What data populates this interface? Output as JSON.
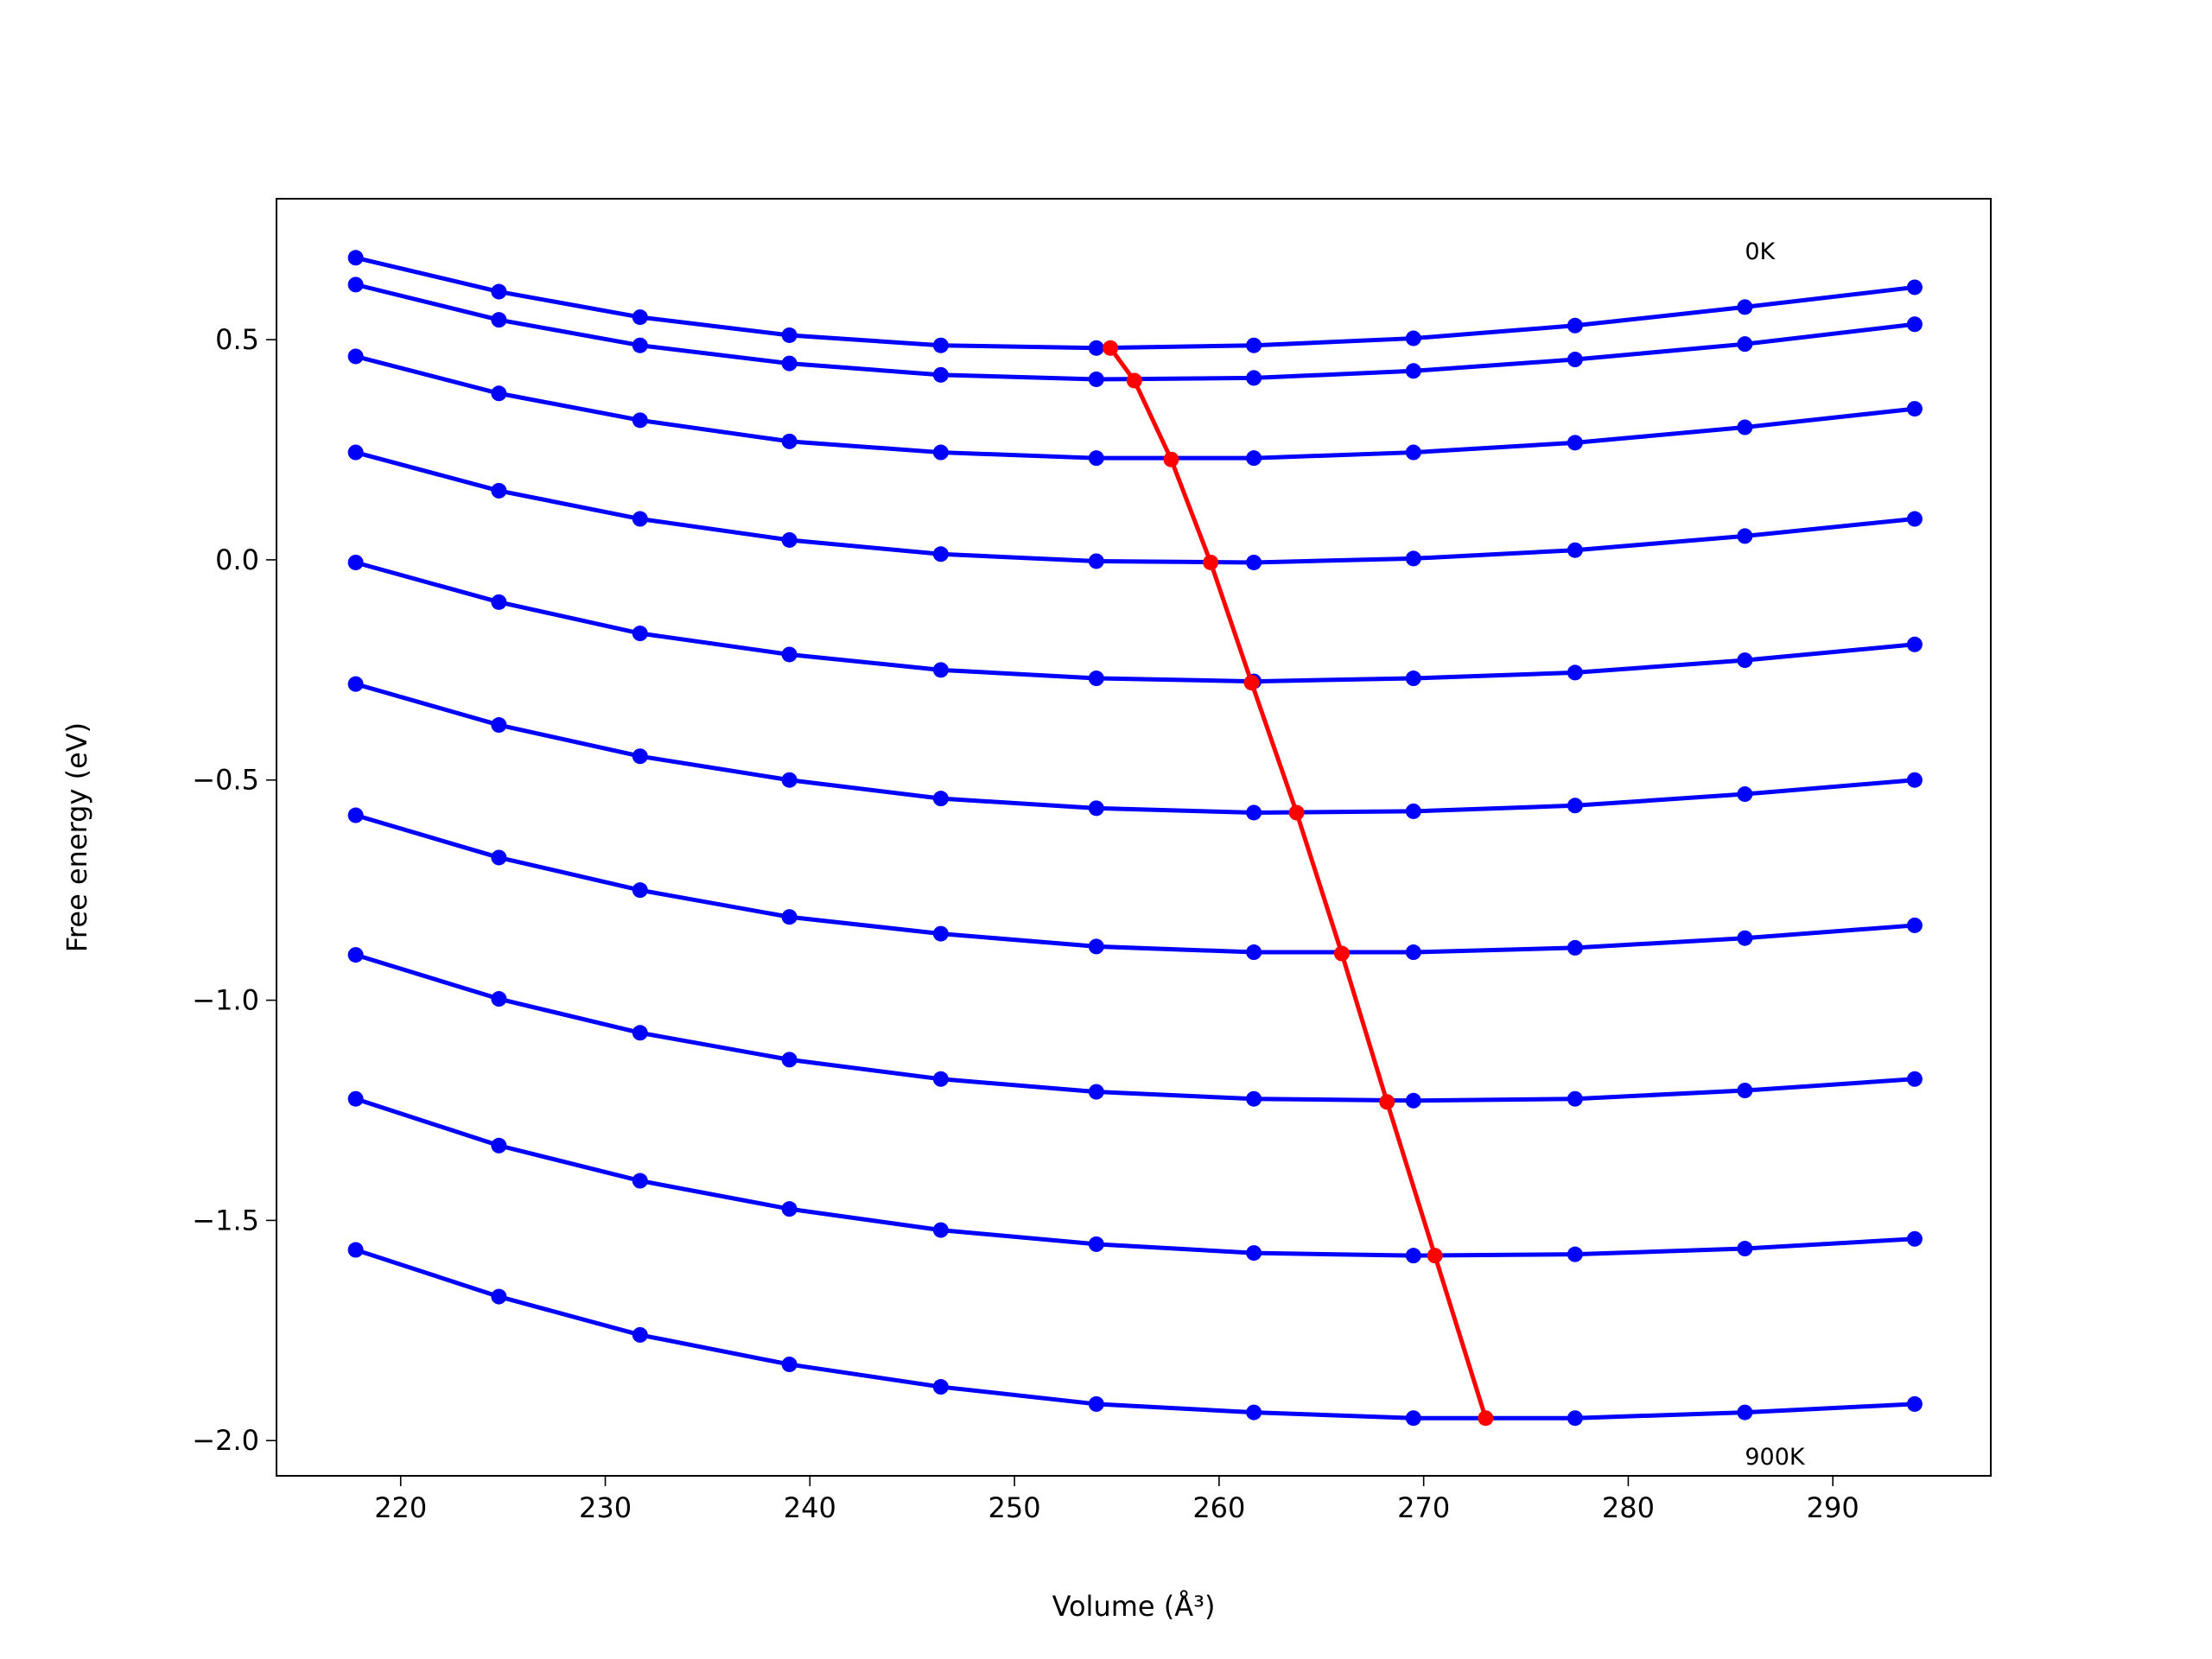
{
  "chart_data": {
    "type": "line",
    "x_label": "Volume (Å³)",
    "y_label": "Free energy (eV)",
    "xlim": [
      213.93,
      297.72
    ],
    "ylim": [
      -2.08,
      0.82
    ],
    "xticks": [
      220,
      230,
      240,
      250,
      260,
      270,
      280,
      290
    ],
    "yticks": [
      {
        "value": -2.0,
        "label": "−2.0"
      },
      {
        "value": -1.5,
        "label": "−1.5"
      },
      {
        "value": -1.0,
        "label": "−1.0"
      },
      {
        "value": -0.5,
        "label": "−0.5"
      },
      {
        "value": 0.0,
        "label": "0.0"
      },
      0.5
    ],
    "annotations": [
      {
        "text": "0K",
        "x": 285.7,
        "y": 0.702
      },
      {
        "text": "900K",
        "x": 285.7,
        "y": -2.035
      }
    ],
    "series": [
      {
        "color": "#0000ff",
        "x": [
          217.8,
          224.8,
          231.7,
          239.0,
          246.4,
          254.0,
          261.7,
          269.5,
          277.4,
          285.7,
          294.0
        ],
        "values": [
          0.686,
          0.609,
          0.551,
          0.51,
          0.487,
          0.481,
          0.487,
          0.503,
          0.532,
          0.574,
          0.619
        ]
      },
      {
        "color": "#0000ff",
        "x": [
          217.8,
          224.8,
          231.7,
          239.0,
          246.4,
          254.0,
          261.7,
          269.5,
          277.4,
          285.7,
          294.0
        ],
        "values": [
          0.625,
          0.545,
          0.487,
          0.446,
          0.42,
          0.41,
          0.413,
          0.429,
          0.455,
          0.49,
          0.535
        ]
      },
      {
        "color": "#0000ff",
        "x": [
          217.8,
          224.8,
          231.7,
          239.0,
          246.4,
          254.0,
          261.7,
          269.5,
          277.4,
          285.7,
          294.0
        ],
        "values": [
          0.462,
          0.378,
          0.317,
          0.269,
          0.244,
          0.231,
          0.231,
          0.244,
          0.266,
          0.301,
          0.343
        ]
      },
      {
        "color": "#0000ff",
        "x": [
          217.8,
          224.8,
          231.7,
          239.0,
          246.4,
          254.0,
          261.7,
          269.5,
          277.4,
          285.7,
          294.0
        ],
        "values": [
          0.244,
          0.157,
          0.093,
          0.045,
          0.013,
          -0.003,
          -0.006,
          0.003,
          0.022,
          0.054,
          0.093
        ]
      },
      {
        "color": "#0000ff",
        "x": [
          217.8,
          224.8,
          231.7,
          239.0,
          246.4,
          254.0,
          261.7,
          269.5,
          277.4,
          285.7,
          294.0
        ],
        "values": [
          -0.006,
          -0.096,
          -0.167,
          -0.215,
          -0.25,
          -0.269,
          -0.276,
          -0.269,
          -0.256,
          -0.228,
          -0.192
        ]
      },
      {
        "color": "#0000ff",
        "x": [
          217.8,
          224.8,
          231.7,
          239.0,
          246.4,
          254.0,
          261.7,
          269.5,
          277.4,
          285.7,
          294.0
        ],
        "values": [
          -0.282,
          -0.375,
          -0.446,
          -0.5,
          -0.542,
          -0.564,
          -0.574,
          -0.571,
          -0.558,
          -0.532,
          -0.5
        ]
      },
      {
        "color": "#0000ff",
        "x": [
          217.8,
          224.8,
          231.7,
          239.0,
          246.4,
          254.0,
          261.7,
          269.5,
          277.4,
          285.7,
          294.0
        ],
        "values": [
          -0.58,
          -0.676,
          -0.75,
          -0.811,
          -0.849,
          -0.878,
          -0.891,
          -0.891,
          -0.881,
          -0.859,
          -0.83
        ]
      },
      {
        "color": "#0000ff",
        "x": [
          217.8,
          224.8,
          231.7,
          239.0,
          246.4,
          254.0,
          261.7,
          269.5,
          277.4,
          285.7,
          294.0
        ],
        "values": [
          -0.897,
          -0.997,
          -1.074,
          -1.135,
          -1.179,
          -1.208,
          -1.224,
          -1.228,
          -1.224,
          -1.205,
          -1.179
        ]
      },
      {
        "color": "#0000ff",
        "x": [
          217.8,
          224.8,
          231.7,
          239.0,
          246.4,
          254.0,
          261.7,
          269.5,
          277.4,
          285.7,
          294.0
        ],
        "values": [
          -1.224,
          -1.33,
          -1.41,
          -1.474,
          -1.522,
          -1.554,
          -1.574,
          -1.58,
          -1.577,
          -1.564,
          -1.542
        ]
      },
      {
        "color": "#0000ff",
        "x": [
          217.8,
          224.8,
          231.7,
          239.0,
          246.4,
          254.0,
          261.7,
          269.5,
          277.4,
          285.7,
          294.0
        ],
        "values": [
          -1.567,
          -1.673,
          -1.76,
          -1.827,
          -1.878,
          -1.917,
          -1.936,
          -1.949,
          -1.949,
          -1.936,
          -1.917
        ]
      },
      {
        "color": "#ff0000",
        "x": [
          254.69,
          255.86,
          257.66,
          259.59,
          261.59,
          263.79,
          266.0,
          268.21,
          270.55,
          273.03
        ],
        "values": [
          0.481,
          0.407,
          0.228,
          -0.006,
          -0.279,
          -0.574,
          -0.894,
          -1.231,
          -1.58,
          -1.949
        ]
      }
    ]
  }
}
